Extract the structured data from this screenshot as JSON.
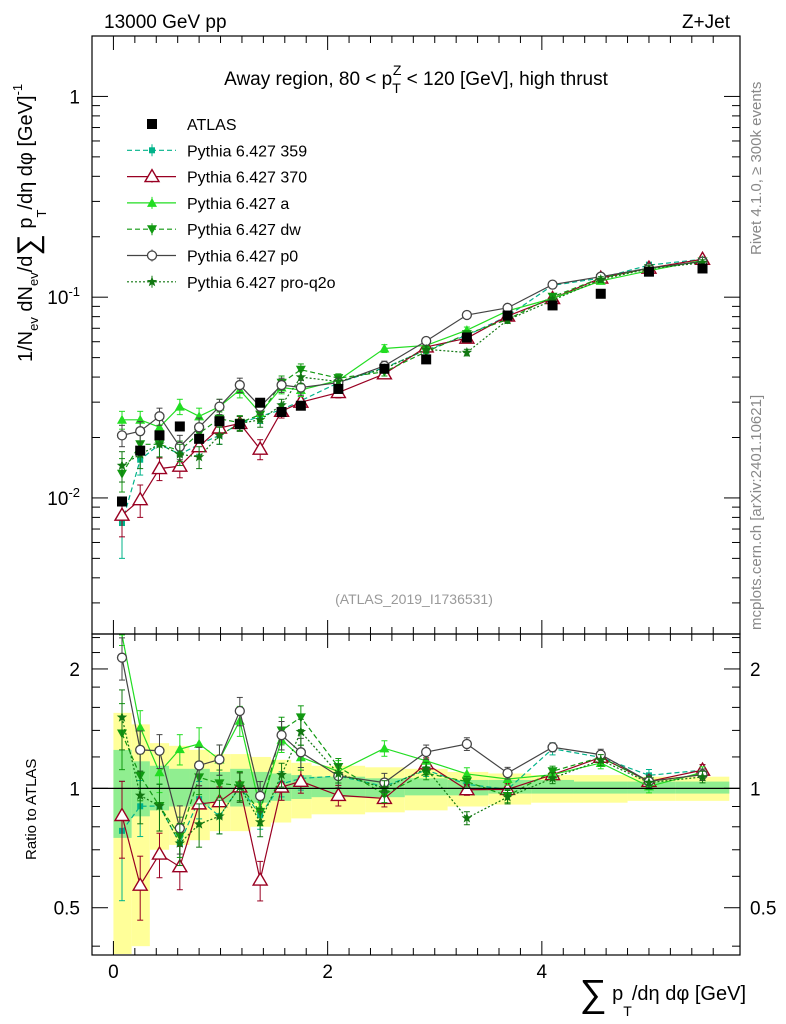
{
  "header": {
    "left": "13000 GeV pp",
    "right": "Z+Jet"
  },
  "side_text": {
    "rivet": "Rivet 4.1.0, ≥ 300k events",
    "mcplots": "mcplots.cern.ch [arXiv:2401.10621]"
  },
  "colors": {
    "atlas": "#000000",
    "p359": "#00b38a",
    "p370": "#990022",
    "pa": "#22dd22",
    "pdw": "#119911",
    "pp0": "#444444",
    "pq2o": "#117711",
    "band_green": "#90ee90",
    "band_yellow": "#ffff99"
  },
  "chart_data": {
    "type": "line",
    "title": "Away region, 80 < p_T^Z < 120 [GeV], high thrust",
    "title_parts": {
      "prefix": "Away region, 80 < p",
      "sub": "T",
      "sup": "Z",
      "suffix": " < 120 [GeV], high thrust"
    },
    "analysis_tag": "(ATLAS_2019_I1736531)",
    "ylabel_main": "1/N_ev dN_ev/d∑p_T/dη dφ [GeV]^-1",
    "ylabel_parts": {
      "a": "1/N",
      "ev": "ev",
      "b": " dN",
      "c": "/d",
      "sum": "∑",
      "p": " p",
      "T": "T",
      "d": "/dη dφ  [GeV]",
      "exp": "-1"
    },
    "ylabel_ratio": "Ratio to ATLAS",
    "xlabel": "∑p_T/dη dφ [GeV]",
    "xlabel_parts": {
      "sum": "∑",
      "p": " p",
      "T": "T",
      "rest": "/dη dφ [GeV]"
    },
    "xlim": [
      -0.2,
      5.85
    ],
    "ylim_main": [
      0.0021,
      2.0
    ],
    "ylim_ratio": [
      0.38,
      2.45
    ],
    "x_ticks": [
      {
        "value": 0,
        "label": "0"
      },
      {
        "value": 2,
        "label": "2"
      },
      {
        "value": 4,
        "label": "4"
      }
    ],
    "y_ticks_main": [
      {
        "value": 0.01,
        "base": "10",
        "exp": "-2"
      },
      {
        "value": 0.1,
        "base": "10",
        "exp": "-1"
      },
      {
        "value": 1,
        "base": "1",
        "exp": ""
      }
    ],
    "y_ticks_ratio": [
      {
        "value": 0.5,
        "label": "0.5"
      },
      {
        "value": 1,
        "label": "1"
      },
      {
        "value": 2,
        "label": "2"
      }
    ],
    "x": [
      0.08,
      0.25,
      0.43,
      0.62,
      0.8,
      0.99,
      1.18,
      1.37,
      1.57,
      1.75,
      2.1,
      2.53,
      2.92,
      3.3,
      3.68,
      4.1,
      4.55,
      5.0,
      5.5
    ],
    "bin_edges": [
      0.0,
      0.17,
      0.34,
      0.52,
      0.71,
      0.9,
      1.09,
      1.28,
      1.47,
      1.66,
      1.85,
      2.35,
      2.72,
      3.12,
      3.5,
      3.9,
      4.3,
      4.8,
      5.25,
      5.75
    ],
    "atlas": [
      0.0096,
      0.0172,
      0.0205,
      0.0227,
      0.0197,
      0.0241,
      0.0233,
      0.0298,
      0.0268,
      0.0288,
      0.0349,
      0.044,
      0.049,
      0.063,
      0.081,
      0.091,
      0.104,
      0.134,
      0.139
    ],
    "band_green": [
      [
        0.75,
        1.25
      ],
      [
        0.85,
        1.17
      ],
      [
        0.88,
        1.14
      ],
      [
        0.9,
        1.12
      ],
      [
        0.9,
        1.12
      ],
      [
        0.92,
        1.1
      ],
      [
        0.9,
        1.12
      ],
      [
        0.92,
        1.1
      ],
      [
        0.93,
        1.09
      ],
      [
        0.94,
        1.08
      ],
      [
        0.95,
        1.07
      ],
      [
        0.95,
        1.06
      ],
      [
        0.96,
        1.06
      ],
      [
        0.96,
        1.05
      ],
      [
        0.97,
        1.05
      ],
      [
        0.97,
        1.05
      ],
      [
        0.97,
        1.04
      ],
      [
        0.97,
        1.04
      ],
      [
        0.97,
        1.04
      ]
    ],
    "band_yellow": [
      [
        0.34,
        1.55
      ],
      [
        0.4,
        1.45
      ],
      [
        0.7,
        1.3
      ],
      [
        0.72,
        1.28
      ],
      [
        0.74,
        1.25
      ],
      [
        0.78,
        1.22
      ],
      [
        0.78,
        1.22
      ],
      [
        0.8,
        1.2
      ],
      [
        0.82,
        1.18
      ],
      [
        0.84,
        1.16
      ],
      [
        0.86,
        1.14
      ],
      [
        0.87,
        1.13
      ],
      [
        0.88,
        1.12
      ],
      [
        0.9,
        1.1
      ],
      [
        0.91,
        1.09
      ],
      [
        0.92,
        1.08
      ],
      [
        0.92,
        1.08
      ],
      [
        0.93,
        1.07
      ],
      [
        0.93,
        1.07
      ]
    ],
    "series": [
      {
        "name": "Pythia 6.427 359",
        "color": "#00b38a",
        "dash": "5,3",
        "marker": "square-small",
        "values": [
          0.0075,
          0.0155,
          0.0185,
          0.0165,
          0.0185,
          0.0205,
          0.0235,
          0.0255,
          0.0275,
          0.0305,
          0.0375,
          0.0445,
          0.0545,
          0.0645,
          0.0805,
          0.1145,
          0.1245,
          0.1445,
          0.1545
        ],
        "err": [
          0.0025,
          0.0025,
          0.0025,
          0.002,
          0.002,
          0.002,
          0.002,
          0.002,
          0.002,
          0.002,
          0.002,
          0.002,
          0.002,
          0.002,
          0.003,
          0.004,
          0.004,
          0.005,
          0.005
        ]
      },
      {
        "name": "Pythia 6.427 370",
        "color": "#990022",
        "dash": "",
        "marker": "triangle-open",
        "values": [
          0.0082,
          0.0098,
          0.014,
          0.0144,
          0.018,
          0.0223,
          0.0235,
          0.0175,
          0.027,
          0.03,
          0.0335,
          0.0415,
          0.0565,
          0.0625,
          0.0805,
          0.0985,
          0.1245,
          0.1395,
          0.1545
        ],
        "err": [
          0.0018,
          0.0018,
          0.0018,
          0.0018,
          0.002,
          0.002,
          0.002,
          0.002,
          0.002,
          0.002,
          0.002,
          0.002,
          0.002,
          0.002,
          0.003,
          0.003,
          0.004,
          0.005,
          0.005
        ]
      },
      {
        "name": "Pythia 6.427 a",
        "color": "#22dd22",
        "dash": "",
        "marker": "triangle-up-filled",
        "values": [
          0.0245,
          0.0245,
          0.0225,
          0.0285,
          0.0255,
          0.0285,
          0.0345,
          0.0265,
          0.0355,
          0.0345,
          0.0385,
          0.0555,
          0.0575,
          0.0685,
          0.0855,
          0.0985,
          0.1205,
          0.1355,
          0.1525
        ],
        "err": [
          0.0025,
          0.0025,
          0.0025,
          0.0025,
          0.0025,
          0.0025,
          0.003,
          0.0025,
          0.0025,
          0.0025,
          0.0025,
          0.0025,
          0.0025,
          0.0025,
          0.003,
          0.003,
          0.004,
          0.005,
          0.005
        ]
      },
      {
        "name": "Pythia 6.427 dw",
        "color": "#119911",
        "dash": "5,3",
        "marker": "triangle-down-filled",
        "values": [
          0.0132,
          0.0185,
          0.0185,
          0.0172,
          0.021,
          0.0248,
          0.0237,
          0.026,
          0.0375,
          0.0435,
          0.0395,
          0.0425,
          0.0535,
          0.0655,
          0.0775,
          0.1005,
          0.1245,
          0.1395,
          0.1505
        ],
        "err": [
          0.0025,
          0.0025,
          0.0025,
          0.002,
          0.002,
          0.002,
          0.002,
          0.002,
          0.003,
          0.003,
          0.002,
          0.002,
          0.002,
          0.002,
          0.003,
          0.003,
          0.004,
          0.005,
          0.005
        ]
      },
      {
        "name": "Pythia 6.427 p0",
        "color": "#444444",
        "dash": "",
        "marker": "circle-open",
        "values": [
          0.0205,
          0.0215,
          0.0255,
          0.018,
          0.0225,
          0.0285,
          0.0365,
          0.0285,
          0.0365,
          0.0355,
          0.0375,
          0.0455,
          0.0605,
          0.0815,
          0.0885,
          0.1155,
          0.1265,
          0.1395,
          0.1505
        ],
        "err": [
          0.0025,
          0.0025,
          0.0025,
          0.0025,
          0.0025,
          0.0025,
          0.003,
          0.0025,
          0.003,
          0.003,
          0.0025,
          0.0025,
          0.0025,
          0.003,
          0.003,
          0.003,
          0.004,
          0.005,
          0.005
        ]
      },
      {
        "name": "Pythia 6.427 pro-q2o",
        "color": "#117711",
        "dash": "2,2",
        "marker": "star",
        "values": [
          0.0145,
          0.0165,
          0.0185,
          0.0165,
          0.016,
          0.0205,
          0.0235,
          0.0245,
          0.029,
          0.04,
          0.038,
          0.044,
          0.055,
          0.053,
          0.077,
          0.0965,
          0.1225,
          0.1385,
          0.1485
        ],
        "err": [
          0.0025,
          0.0025,
          0.0025,
          0.002,
          0.002,
          0.002,
          0.002,
          0.002,
          0.002,
          0.003,
          0.002,
          0.002,
          0.002,
          0.002,
          0.003,
          0.003,
          0.004,
          0.005,
          0.005
        ]
      }
    ]
  }
}
